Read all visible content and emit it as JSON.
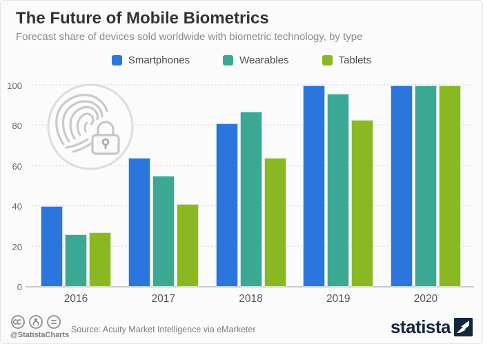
{
  "header": {
    "title": "The Future of Mobile Biometrics",
    "subtitle": "Forecast share of devices sold worldwide with biometric technology, by type"
  },
  "chart_data": {
    "type": "bar",
    "title": "The Future of Mobile Biometrics",
    "categories": [
      "2016",
      "2017",
      "2018",
      "2019",
      "2020"
    ],
    "series": [
      {
        "name": "Smartphones",
        "color": "#2b76dc",
        "values": [
          40,
          64,
          81,
          100,
          100
        ]
      },
      {
        "name": "Wearables",
        "color": "#3aa893",
        "values": [
          26,
          55,
          87,
          96,
          100
        ]
      },
      {
        "name": "Tablets",
        "color": "#8ab822",
        "values": [
          27,
          41,
          64,
          83,
          100
        ]
      }
    ],
    "xlabel": "",
    "ylabel": "",
    "ylim": [
      0,
      100
    ],
    "yticks": [
      0,
      20,
      40,
      60,
      80,
      100
    ],
    "grid": true,
    "legend_position": "top"
  },
  "watermark": {
    "icon": "fingerprint-lock-icon"
  },
  "footer": {
    "handle": "@StatistaCharts",
    "source": "Source: Acuity Market Intelligence via eMarketer",
    "brand": "statista",
    "license_icons": [
      "cc-icon",
      "attribution-icon",
      "equal-icon"
    ]
  }
}
